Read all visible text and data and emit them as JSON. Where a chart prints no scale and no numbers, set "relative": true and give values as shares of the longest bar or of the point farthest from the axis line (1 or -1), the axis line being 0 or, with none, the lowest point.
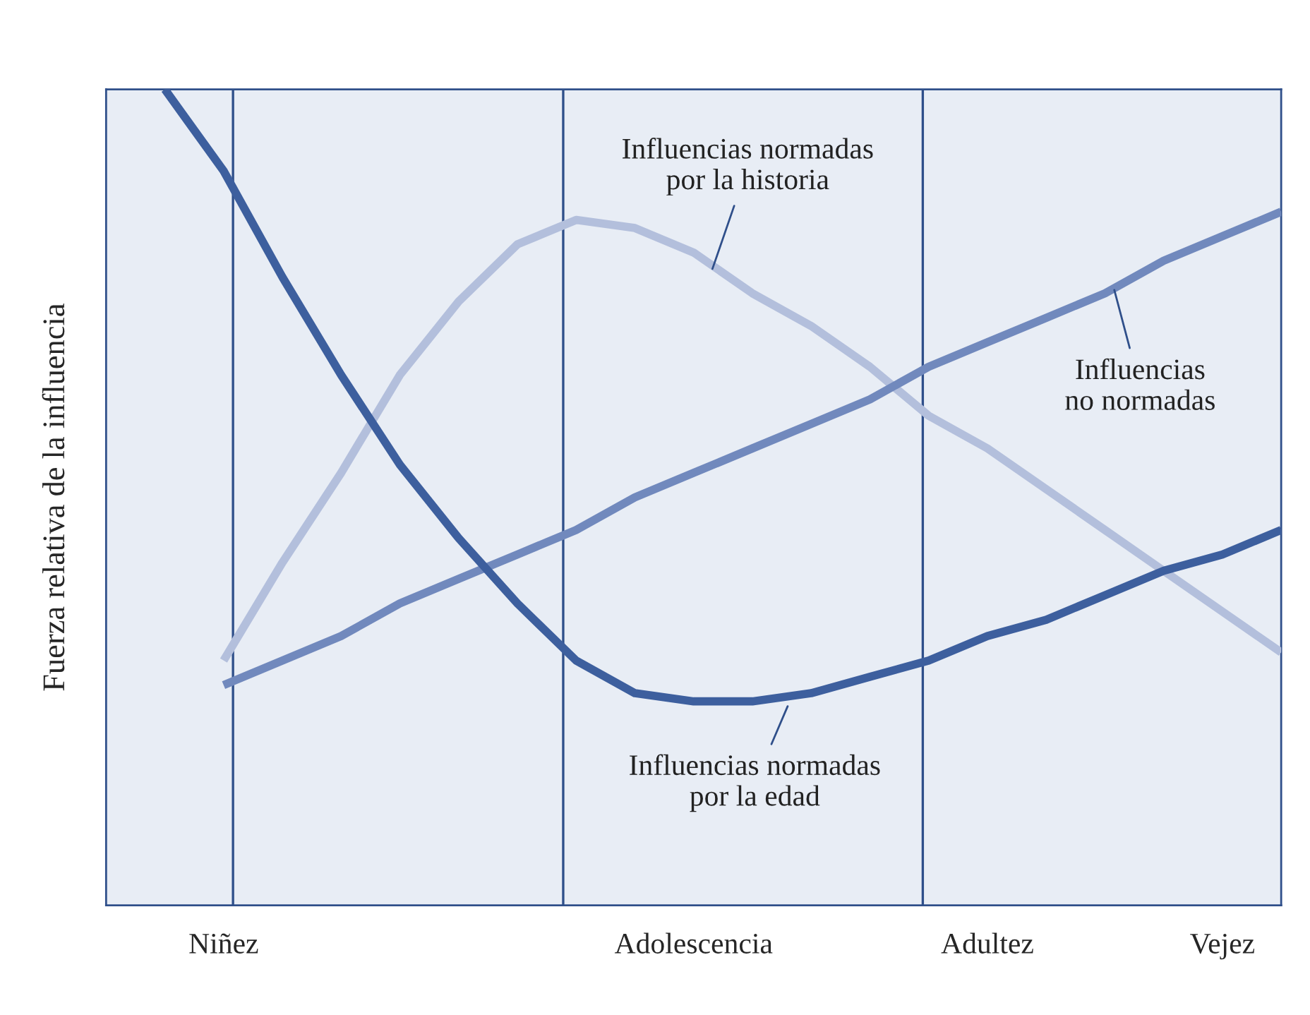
{
  "chart_data": {
    "type": "line",
    "relative": true,
    "ylabel": "Fuerza relativa de la influencia",
    "categories": [
      null,
      null,
      "Niñez",
      null,
      null,
      null,
      null,
      null,
      null,
      null,
      "Adolescencia",
      null,
      null,
      null,
      null,
      "Adultez",
      null,
      null,
      null,
      "Vejez",
      null
    ],
    "legend": false,
    "marker": "none",
    "line_style": "solid",
    "series": [
      {
        "name": "Influencias normadas\npor la historia",
        "color": "#b3bfdc",
        "values": [
          null,
          null,
          0.3,
          0.42,
          0.53,
          0.65,
          0.74,
          0.81,
          0.84,
          0.83,
          0.8,
          0.75,
          0.71,
          0.66,
          0.6,
          0.56,
          0.51,
          0.46,
          0.41,
          0.36,
          0.31
        ]
      },
      {
        "name": "Influencias\nno normadas",
        "color": "#7189bd",
        "values": [
          null,
          null,
          0.27,
          0.3,
          0.33,
          0.37,
          0.4,
          0.43,
          0.46,
          0.5,
          0.53,
          0.56,
          0.59,
          0.62,
          0.66,
          0.69,
          0.72,
          0.75,
          0.79,
          0.82,
          0.85
        ]
      },
      {
        "name": "Influencias normadas\npor la edad",
        "color": "#3d5f9e",
        "values": [
          null,
          1.0,
          0.9,
          0.77,
          0.65,
          0.54,
          0.45,
          0.37,
          0.3,
          0.26,
          0.25,
          0.25,
          0.26,
          0.28,
          0.3,
          0.33,
          0.35,
          0.38,
          0.41,
          0.43,
          0.46
        ]
      }
    ]
  }
}
